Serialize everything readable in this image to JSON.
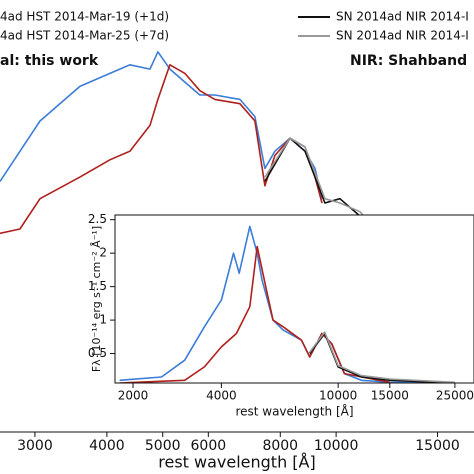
{
  "chart_data": [
    {
      "type": "line",
      "xlabel": "rest wavelength [Å]",
      "xscale": "log",
      "xlim": [
        2609,
        17354
      ],
      "ylim": [
        0,
        1
      ],
      "xticks": [
        3000,
        4000,
        5000,
        6000,
        8000,
        10000,
        15000
      ],
      "annotations": [
        "al: this work",
        "NIR: Shahband"
      ],
      "series": [
        {
          "name": "4ad HST 2014-Mar-19 (+1d)",
          "color": "#3b7dd8",
          "x": [
            2609,
            3061,
            3591,
            4049,
            4385,
            4752,
            4905,
            5146,
            5464,
            5801,
            6160,
            6808,
            7228,
            7522,
            7830,
            8316,
            8831,
            9189,
            9450
          ],
          "values": [
            0.58,
            0.72,
            0.8,
            0.83,
            0.85,
            0.84,
            0.88,
            0.84,
            0.81,
            0.78,
            0.78,
            0.77,
            0.73,
            0.61,
            0.65,
            0.68,
            0.65,
            0.61,
            0.54
          ]
        },
        {
          "name": "4ad HST 2014-Mar-25 (+7d)",
          "color": "#b0201c",
          "x": [
            2609,
            2825,
            3061,
            3591,
            4049,
            4385,
            4752,
            4905,
            5146,
            5464,
            5801,
            6160,
            6808,
            7228,
            7522,
            7830,
            8316,
            8831,
            9189,
            9450
          ],
          "values": [
            0.46,
            0.47,
            0.54,
            0.59,
            0.63,
            0.65,
            0.71,
            0.77,
            0.85,
            0.83,
            0.79,
            0.77,
            0.76,
            0.72,
            0.57,
            0.64,
            0.68,
            0.66,
            0.59,
            0.53
          ]
        },
        {
          "name": "SN 2014ad NIR 2014-I",
          "color": "#111111",
          "x": [
            7522,
            8316,
            8831,
            9189,
            9563,
            10153,
            11000,
            11915,
            12908,
            13981,
            15146,
            16406,
            17354
          ],
          "values": [
            0.58,
            0.68,
            0.65,
            0.59,
            0.53,
            0.54,
            0.5,
            0.46,
            0.39,
            0.32,
            0.27,
            0.26,
            0.26
          ]
        },
        {
          "name": "SN 2014ad NIR 2014-I",
          "color": "#999999",
          "x": [
            7522,
            8316,
            8831,
            9189,
            9563,
            10153,
            11000,
            11915,
            12908,
            13981,
            15146,
            16406,
            17354
          ],
          "values": [
            0.59,
            0.68,
            0.66,
            0.6,
            0.54,
            0.53,
            0.51,
            0.46,
            0.43,
            0.4,
            0.36,
            0.31,
            0.32
          ]
        }
      ]
    },
    {
      "type": "line",
      "xlabel": "rest wavelength [Å]",
      "ylabel": "Fλ [10⁻¹⁴ erg s⁻¹ cm⁻² Å⁻¹]",
      "xscale": "log",
      "xlim": [
        1736,
        29040
      ],
      "ylim": [
        0.06,
        2.57
      ],
      "xticks": [
        2000,
        4000,
        10000,
        15000,
        25000
      ],
      "yticks": [
        0.5,
        1,
        1.5,
        2,
        2.5
      ],
      "series": [
        {
          "color": "#3b7dd8",
          "x": [
            1800,
            2500,
            3000,
            3500,
            4000,
            4400,
            4600,
            5000,
            5300,
            5500,
            6000,
            6500,
            7500,
            8000,
            8800,
            9500,
            10500,
            12000,
            15000,
            25000
          ],
          "values": [
            0.1,
            0.15,
            0.4,
            0.9,
            1.3,
            2.0,
            1.7,
            2.4,
            2.0,
            1.6,
            1.0,
            0.85,
            0.7,
            0.45,
            0.8,
            0.65,
            0.2,
            0.1,
            0.07,
            0.06
          ]
        },
        {
          "color": "#b0201c",
          "x": [
            1800,
            3000,
            3500,
            4000,
            4500,
            5000,
            5300,
            5600,
            6000,
            6500,
            7500,
            8000,
            8800,
            9500,
            10500,
            15000
          ],
          "values": [
            0.06,
            0.1,
            0.3,
            0.6,
            0.8,
            1.2,
            2.1,
            1.6,
            1.0,
            0.9,
            0.7,
            0.45,
            0.8,
            0.65,
            0.2,
            0.07
          ]
        },
        {
          "color": "#111111",
          "x": [
            8000,
            9000,
            10000,
            12000,
            15000,
            25000
          ],
          "values": [
            0.5,
            0.8,
            0.3,
            0.15,
            0.1,
            0.06
          ]
        },
        {
          "color": "#999999",
          "x": [
            8000,
            9000,
            10000,
            12000,
            15000,
            25000
          ],
          "values": [
            0.52,
            0.82,
            0.32,
            0.17,
            0.12,
            0.07
          ]
        }
      ]
    }
  ]
}
